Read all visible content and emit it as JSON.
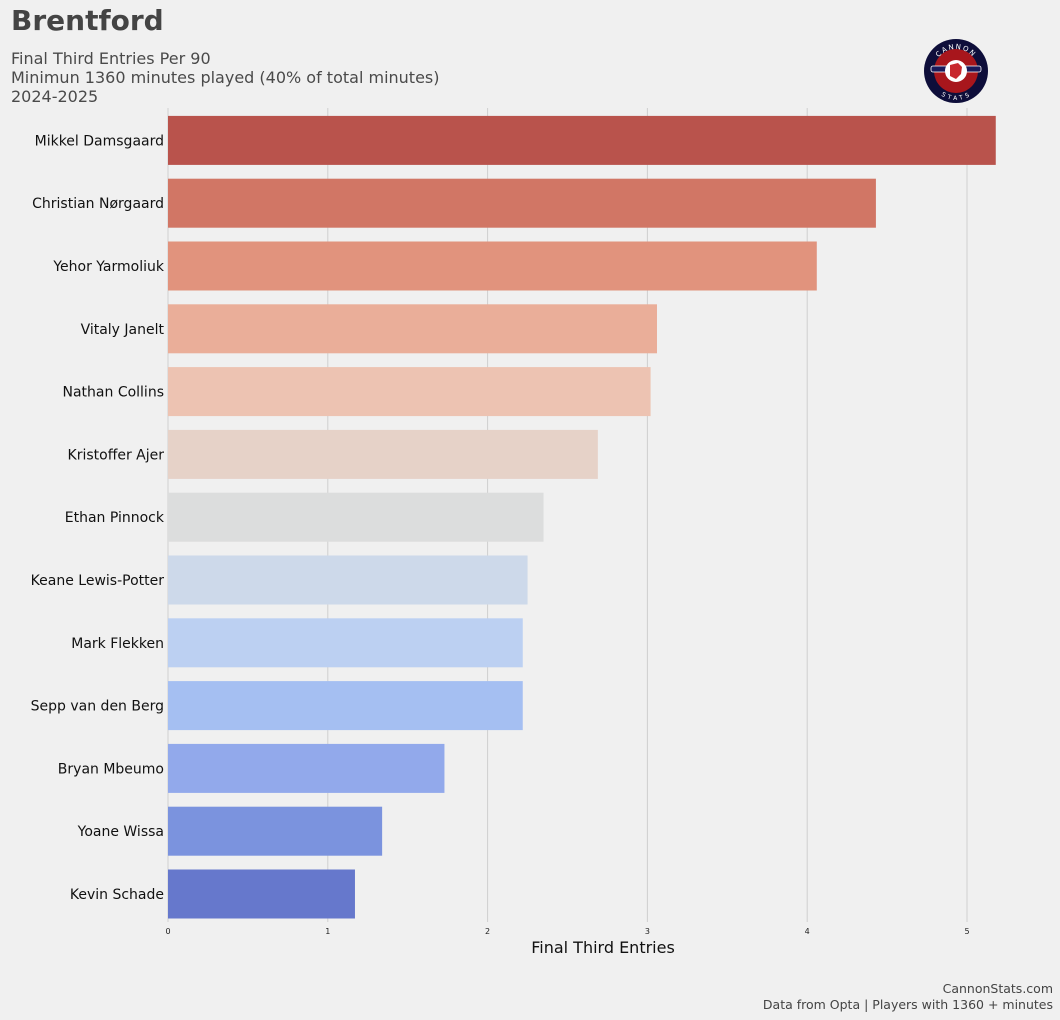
{
  "header": {
    "title": "Brentford",
    "subtitle_line1": "Final Third Entries Per 90",
    "subtitle_line2": "Minimun 1360 minutes played (40% of total minutes)",
    "subtitle_line3": "2024-2025"
  },
  "logo": {
    "top_text": "CANNON",
    "bottom_text": "STATS"
  },
  "footer": {
    "site": "CannonStats.com",
    "source": "Data from Opta | Players with 1360 + minutes"
  },
  "chart_data": {
    "type": "bar",
    "orientation": "horizontal",
    "xlabel": "Final Third Entries",
    "xlim": [
      0,
      5.5
    ],
    "xticks": [
      0,
      1,
      2,
      3,
      4,
      5
    ],
    "grid": "vertical",
    "categories": [
      "Mikkel Damsgaard",
      "Christian Nørgaard",
      "Yehor Yarmoliuk",
      "Vitaly Janelt",
      "Nathan Collins",
      "Kristoffer Ajer",
      "Ethan Pinnock",
      "Keane Lewis-Potter",
      "Mark Flekken",
      "Sepp van den Berg",
      "Bryan Mbeumo",
      "Yoane Wissa",
      "Kevin Schade"
    ],
    "values": [
      5.18,
      4.43,
      4.06,
      3.06,
      3.02,
      2.69,
      2.35,
      2.25,
      2.22,
      2.22,
      1.73,
      1.34,
      1.17
    ],
    "colors": [
      "#b9534c",
      "#d17665",
      "#e1937d",
      "#eaae99",
      "#edc3b2",
      "#e6d2c8",
      "#dcdddd",
      "#cdd9ea",
      "#bcd0f2",
      "#a5bff2",
      "#92a9eb",
      "#7b93de",
      "#6678cc"
    ]
  }
}
